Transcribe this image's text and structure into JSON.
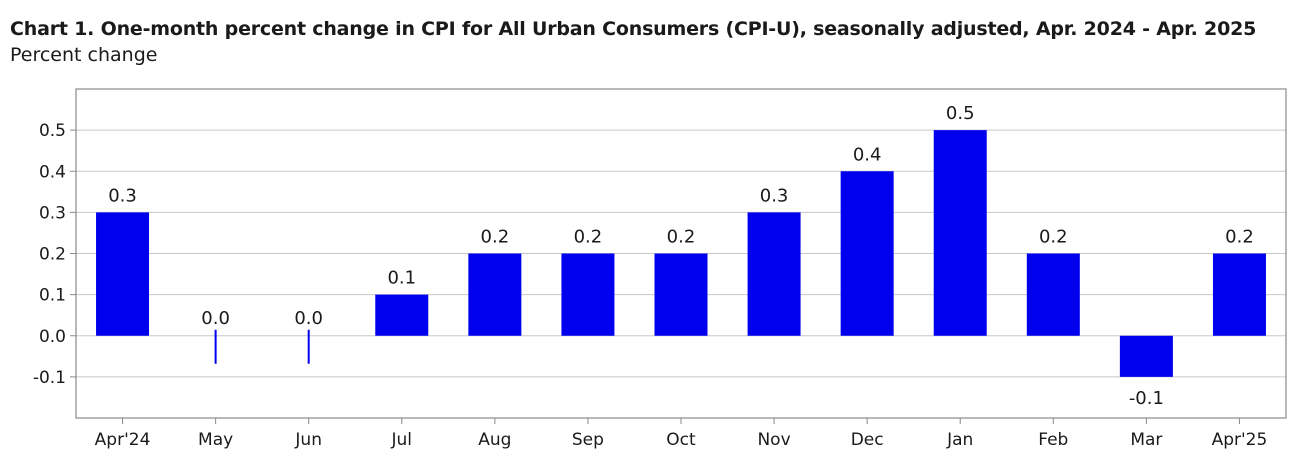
{
  "header": {
    "title": "Chart 1. One-month percent change in CPI for All Urban Consumers (CPI-U), seasonally adjusted, Apr. 2024 - Apr. 2025",
    "subtitle": "Percent change"
  },
  "chart_data": {
    "type": "bar",
    "title": "Chart 1. One-month percent change in CPI for All Urban Consumers (CPI-U), seasonally adjusted, Apr. 2024 - Apr. 2025",
    "ylabel": "Percent change",
    "xlabel": "",
    "categories": [
      "Apr'24",
      "May",
      "Jun",
      "Jul",
      "Aug",
      "Sep",
      "Oct",
      "Nov",
      "Dec",
      "Jan",
      "Feb",
      "Mar",
      "Apr'25"
    ],
    "values": [
      0.3,
      0.0,
      0.0,
      0.1,
      0.2,
      0.2,
      0.2,
      0.3,
      0.4,
      0.5,
      0.2,
      -0.1,
      0.2
    ],
    "value_labels": [
      "0.3",
      "0.0",
      "0.0",
      "0.1",
      "0.2",
      "0.2",
      "0.2",
      "0.3",
      "0.4",
      "0.5",
      "0.2",
      "-0.1",
      "0.2"
    ],
    "yticks": [
      -0.1,
      0.0,
      0.1,
      0.2,
      0.3,
      0.4,
      0.5
    ],
    "ytick_labels": [
      "-0.1",
      "0.0",
      "0.1",
      "0.2",
      "0.3",
      "0.4",
      "0.5"
    ],
    "ylim": [
      -0.2,
      0.6
    ],
    "grid": true,
    "bar_color": "#0000ee",
    "grid_color": "#c8c8c8",
    "frame_color": "#8a8a8a"
  }
}
